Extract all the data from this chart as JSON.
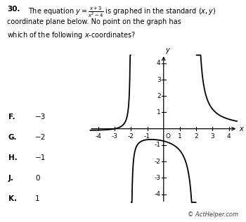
{
  "xlim": [
    -4.6,
    4.6
  ],
  "ylim": [
    -4.6,
    4.6
  ],
  "xtick_labels": [
    -4,
    -3,
    -2,
    -1,
    1,
    2,
    3,
    4
  ],
  "ytick_labels": [
    -4,
    -3,
    -2,
    -1,
    1,
    2,
    3,
    4
  ],
  "xlabel": "x",
  "ylabel": "y",
  "curve_color": "#000000",
  "background_color": "#ffffff",
  "copyright": "© ActHelper.com",
  "choices": [
    [
      "F.",
      "−3"
    ],
    [
      "G.",
      "−2"
    ],
    [
      "H.",
      "−1"
    ],
    [
      "J.",
      "0"
    ],
    [
      "K.",
      "1"
    ]
  ]
}
